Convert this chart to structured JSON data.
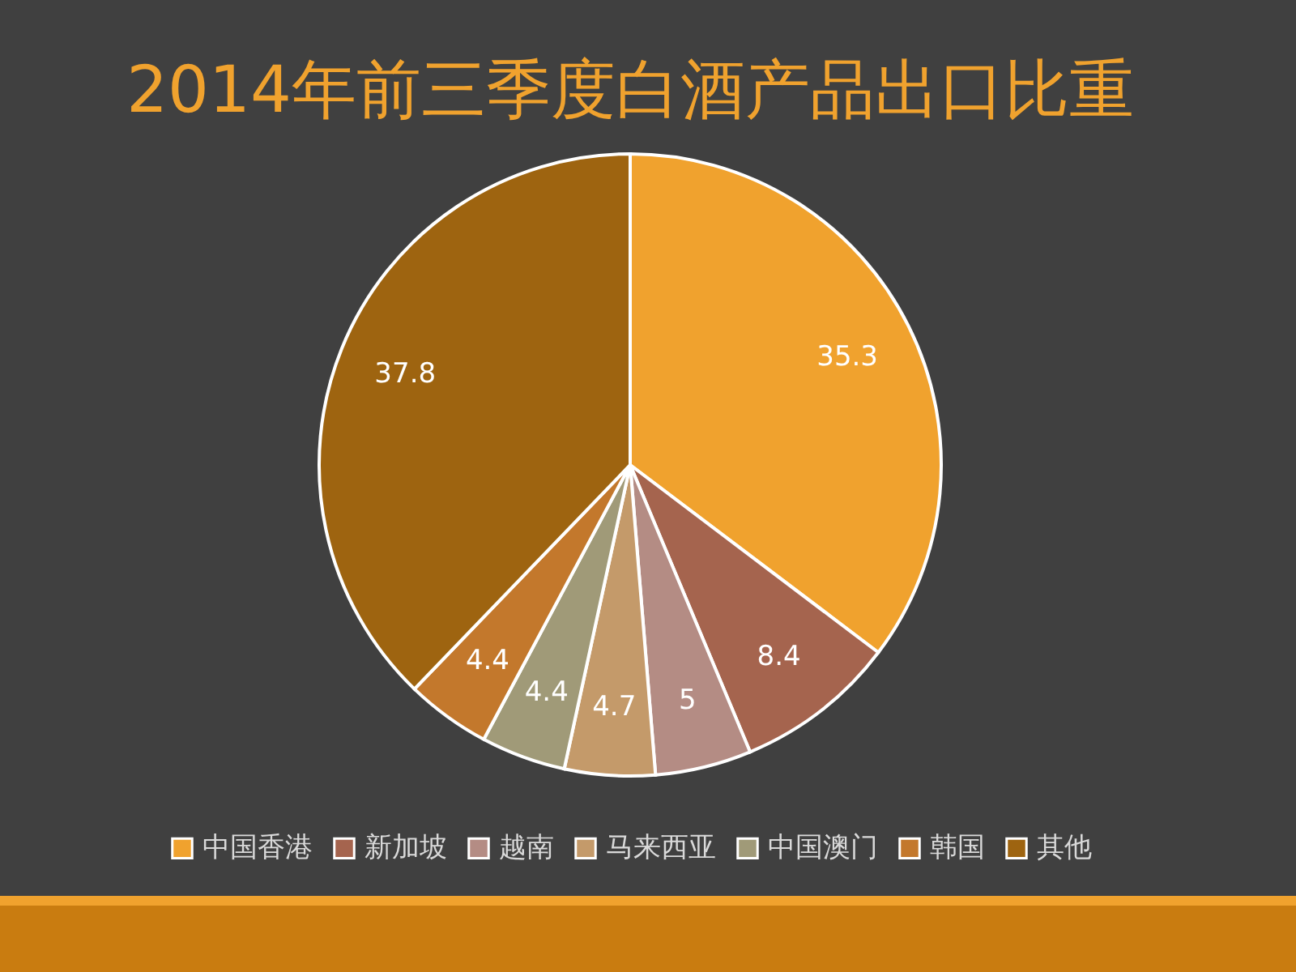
{
  "chart_data": {
    "type": "pie",
    "title": "2014年前三季度白酒产品出口比重",
    "categories": [
      "中国香港",
      "新加坡",
      "越南",
      "马来西亚",
      "中国澳门",
      "韩国",
      "其他"
    ],
    "values": [
      35.3,
      8.4,
      5,
      4.7,
      4.4,
      4.4,
      37.8
    ],
    "colors": [
      "#f0a22e",
      "#a5644e",
      "#b48c84",
      "#c49a6a",
      "#a09a78",
      "#c3782c",
      "#9e6410"
    ],
    "data_labels": true,
    "legend": "bottom"
  }
}
